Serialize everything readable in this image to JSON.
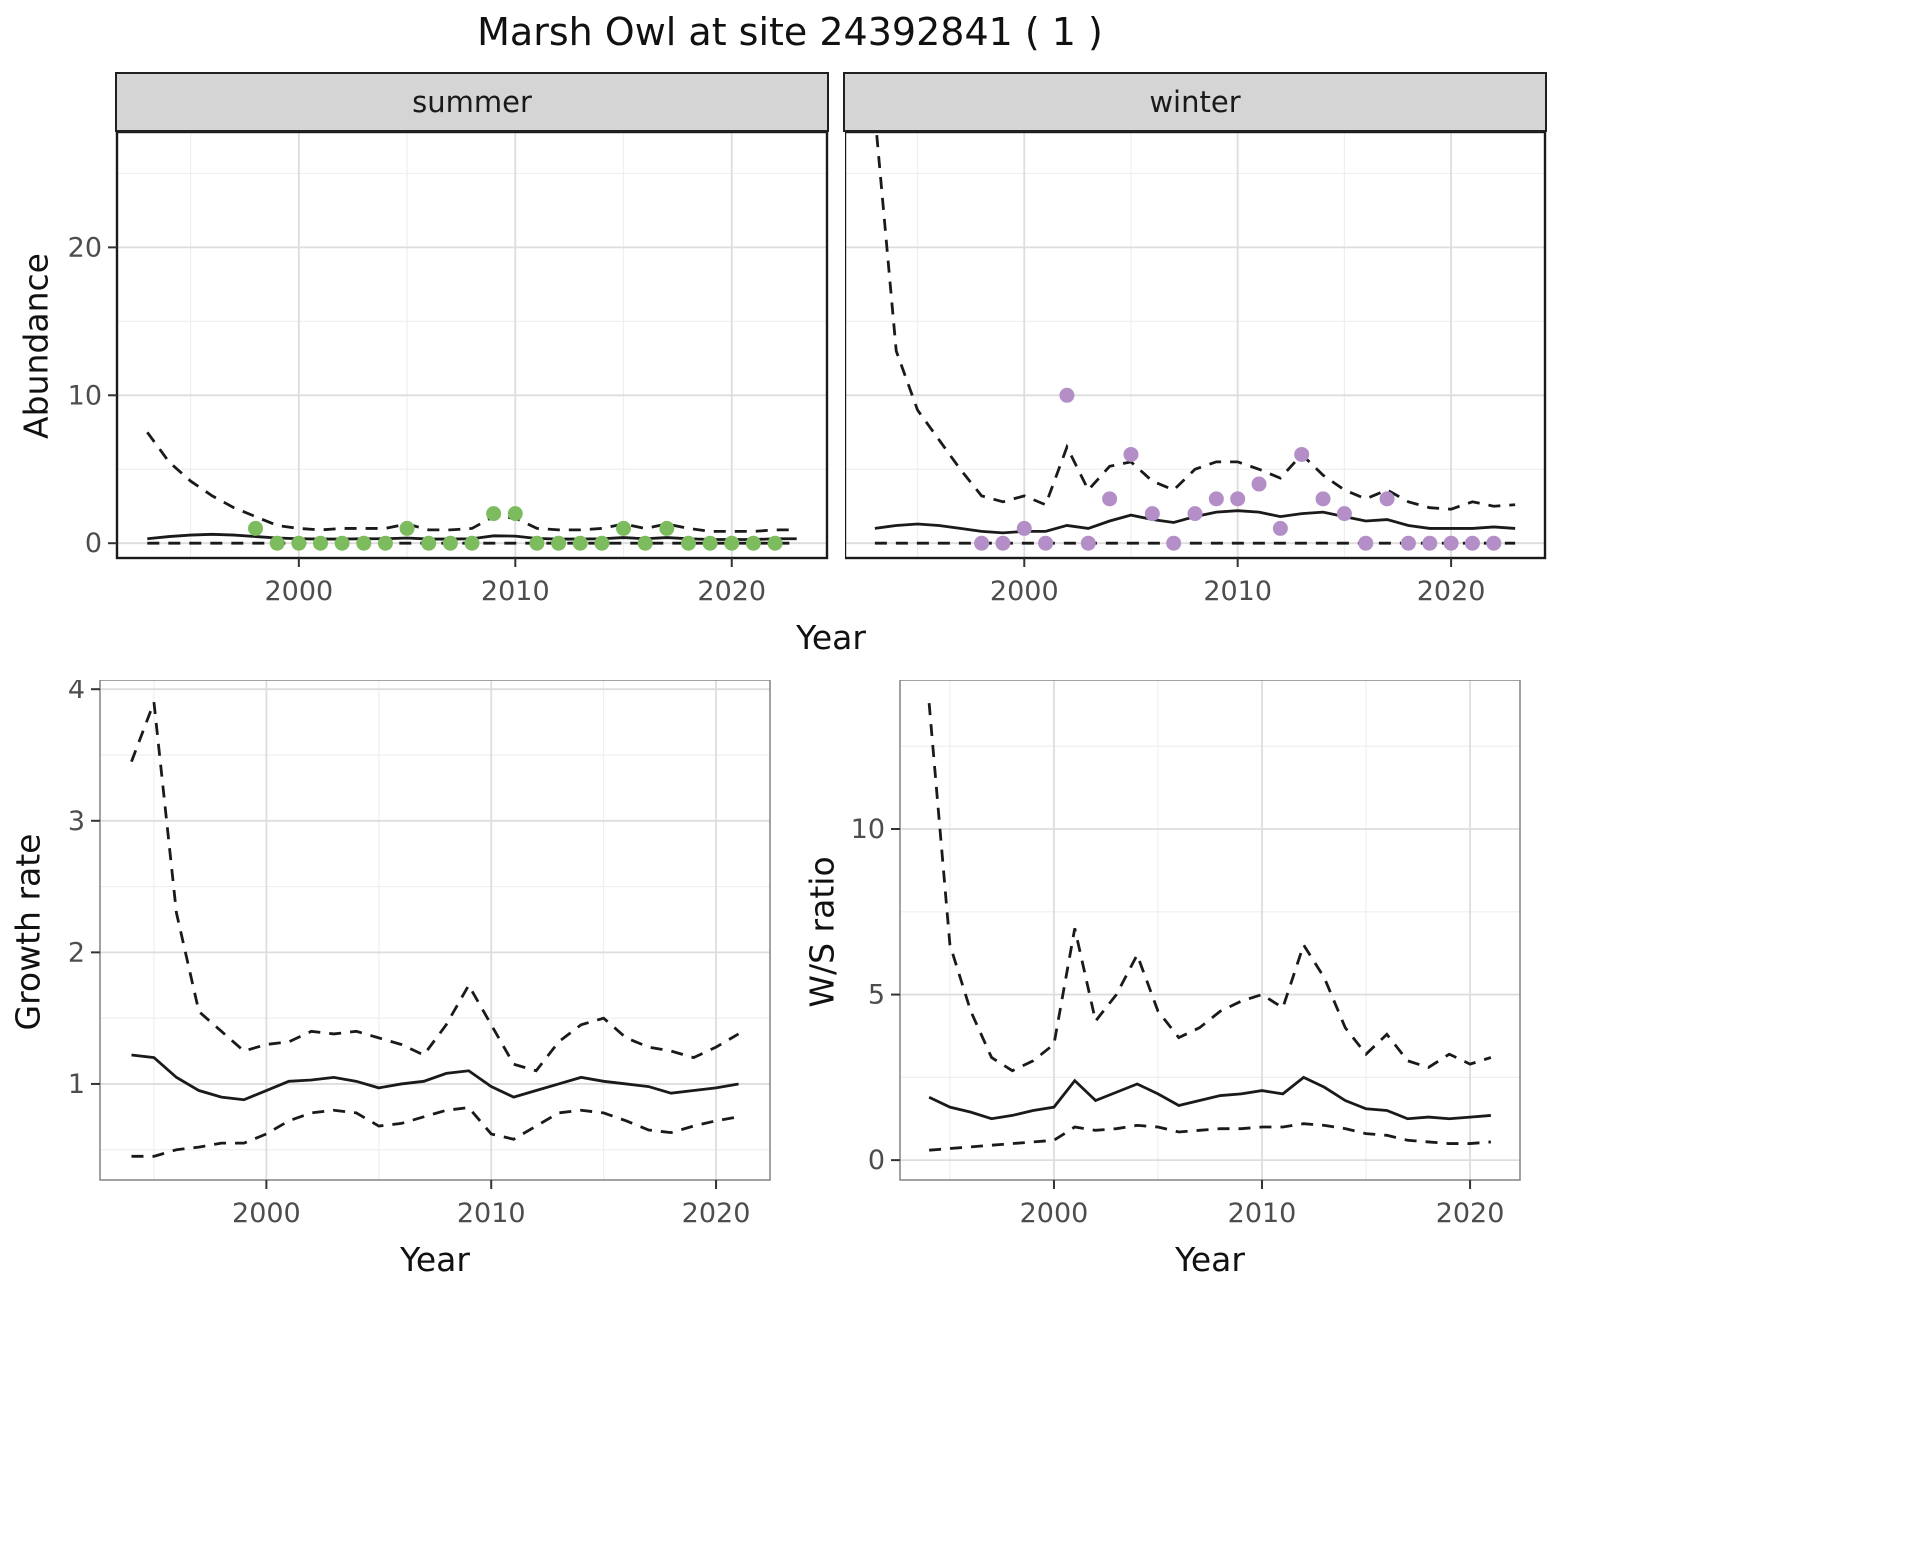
{
  "title": "Marsh Owl at site 24392841 ( 1 )",
  "facets": [
    {
      "id": "summer",
      "label": "summer"
    },
    {
      "id": "winter",
      "label": "winter"
    }
  ],
  "axes": {
    "abundance": "Abundance",
    "year_top": "Year",
    "growth_rate": "Growth rate",
    "year_growth": "Year",
    "ws_ratio": "W/S ratio",
    "year_ws": "Year"
  },
  "colors": {
    "summer_points": "#7CBB5E",
    "winter_points": "#B48EC7",
    "line": "#1a1a1a",
    "strip_background": "#d5d5d5",
    "grid_major": "#dddddd",
    "grid_minor": "#efefef"
  },
  "chart_data": [
    {
      "id": "abundance-summer",
      "type": "line",
      "facet": "summer",
      "xlabel": "Year",
      "ylabel": "Abundance",
      "xlim": [
        1991.6,
        2024.4
      ],
      "ylim": [
        -1.0,
        27.8
      ],
      "xticks": [
        2000,
        2010,
        2020
      ],
      "yticks": [
        0,
        10,
        20
      ],
      "x": [
        1993,
        1994,
        1995,
        1996,
        1997,
        1998,
        1999,
        2000,
        2001,
        2002,
        2003,
        2004,
        2005,
        2006,
        2007,
        2008,
        2009,
        2010,
        2011,
        2012,
        2013,
        2014,
        2015,
        2016,
        2017,
        2018,
        2019,
        2020,
        2021,
        2022,
        2023
      ],
      "series": [
        {
          "name": "upper_95ci",
          "style": "dashed",
          "color": "#1a1a1a",
          "y": [
            7.5,
            5.5,
            4.2,
            3.2,
            2.4,
            1.8,
            1.2,
            1.0,
            0.9,
            1.0,
            1.0,
            1.0,
            1.3,
            0.9,
            0.9,
            1.0,
            1.8,
            1.7,
            1.0,
            0.9,
            0.9,
            1.0,
            1.3,
            1.0,
            1.3,
            1.0,
            0.8,
            0.8,
            0.8,
            0.9,
            0.9
          ]
        },
        {
          "name": "fitted",
          "style": "solid",
          "color": "#1a1a1a",
          "y": [
            0.3,
            0.45,
            0.55,
            0.6,
            0.55,
            0.45,
            0.35,
            0.3,
            0.28,
            0.28,
            0.3,
            0.3,
            0.35,
            0.28,
            0.28,
            0.3,
            0.5,
            0.48,
            0.32,
            0.28,
            0.28,
            0.3,
            0.38,
            0.3,
            0.38,
            0.3,
            0.25,
            0.25,
            0.25,
            0.3,
            0.3
          ]
        },
        {
          "name": "lower_95ci",
          "style": "dashed",
          "color": "#1a1a1a",
          "y": [
            0,
            0,
            0,
            0,
            0,
            0,
            0,
            0,
            0,
            0,
            0,
            0,
            0,
            0,
            0,
            0,
            0,
            0,
            0,
            0,
            0,
            0,
            0,
            0,
            0,
            0,
            0,
            0,
            0,
            0,
            0
          ]
        }
      ],
      "points": {
        "name": "observed_counts",
        "color": "#7CBB5E",
        "x": [
          1998,
          1999,
          2000,
          2001,
          2002,
          2003,
          2004,
          2005,
          2006,
          2007,
          2008,
          2009,
          2010,
          2011,
          2012,
          2013,
          2014,
          2015,
          2016,
          2017,
          2018,
          2019,
          2020,
          2021,
          2022
        ],
        "y": [
          1,
          0,
          0,
          0,
          0,
          0,
          0,
          1,
          0,
          0,
          0,
          2,
          2,
          0,
          0,
          0,
          0,
          1,
          0,
          1,
          0,
          0,
          0,
          0,
          0
        ]
      }
    },
    {
      "id": "abundance-winter",
      "type": "line",
      "facet": "winter",
      "xlabel": "Year",
      "ylabel": "Abundance",
      "xlim": [
        1991.6,
        2024.4
      ],
      "ylim": [
        -1.0,
        27.8
      ],
      "xticks": [
        2000,
        2010,
        2020
      ],
      "yticks": [
        0,
        10,
        20
      ],
      "x": [
        1993,
        1994,
        1995,
        1996,
        1997,
        1998,
        1999,
        2000,
        2001,
        2002,
        2003,
        2004,
        2005,
        2006,
        2007,
        2008,
        2009,
        2010,
        2011,
        2012,
        2013,
        2014,
        2015,
        2016,
        2017,
        2018,
        2019,
        2020,
        2021,
        2022,
        2023
      ],
      "series": [
        {
          "name": "upper_95ci",
          "style": "dashed",
          "color": "#1a1a1a",
          "y": [
            29,
            13,
            9,
            7,
            5,
            3.2,
            2.8,
            3.2,
            2.6,
            6.5,
            3.6,
            5.2,
            5.5,
            4.2,
            3.6,
            5.0,
            5.5,
            5.5,
            5.0,
            4.4,
            6.0,
            4.6,
            3.6,
            3.0,
            3.6,
            2.8,
            2.4,
            2.3,
            2.8,
            2.5,
            2.6
          ]
        },
        {
          "name": "fitted",
          "style": "solid",
          "color": "#1a1a1a",
          "y": [
            1.0,
            1.2,
            1.3,
            1.2,
            1.0,
            0.8,
            0.7,
            0.8,
            0.8,
            1.2,
            1.0,
            1.5,
            1.9,
            1.6,
            1.4,
            1.8,
            2.1,
            2.2,
            2.1,
            1.8,
            2.0,
            2.1,
            1.8,
            1.5,
            1.6,
            1.2,
            1.0,
            1.0,
            1.0,
            1.1,
            1.0
          ]
        },
        {
          "name": "lower_95ci",
          "style": "dashed",
          "color": "#1a1a1a",
          "y": [
            0,
            0,
            0,
            0,
            0,
            0,
            0,
            0,
            0,
            0,
            0,
            0,
            0,
            0,
            0,
            0,
            0,
            0,
            0,
            0,
            0,
            0,
            0,
            0,
            0,
            0,
            0,
            0,
            0,
            0,
            0
          ]
        }
      ],
      "points": {
        "name": "observed_counts",
        "color": "#B48EC7",
        "x": [
          1998,
          1999,
          2000,
          2001,
          2002,
          2003,
          2004,
          2005,
          2006,
          2007,
          2008,
          2009,
          2010,
          2011,
          2012,
          2013,
          2014,
          2015,
          2016,
          2017,
          2018,
          2019,
          2020,
          2021,
          2022
        ],
        "y": [
          0,
          0,
          1,
          0,
          10,
          0,
          3,
          6,
          2,
          0,
          2,
          3,
          3,
          4,
          1,
          6,
          3,
          2,
          0,
          3,
          0,
          0,
          0,
          0,
          0
        ]
      }
    },
    {
      "id": "growth-rate",
      "type": "line",
      "xlabel": "Year",
      "ylabel": "Growth rate",
      "xlim": [
        1992.6,
        2022.4
      ],
      "ylim": [
        0.27,
        4.07
      ],
      "xticks": [
        2000,
        2010,
        2020
      ],
      "yticks": [
        1,
        2,
        3,
        4
      ],
      "x": [
        1994,
        1995,
        1996,
        1997,
        1998,
        1999,
        2000,
        2001,
        2002,
        2003,
        2004,
        2005,
        2006,
        2007,
        2008,
        2009,
        2010,
        2011,
        2012,
        2013,
        2014,
        2015,
        2016,
        2017,
        2018,
        2019,
        2020,
        2021
      ],
      "series": [
        {
          "name": "upper_95ci",
          "style": "dashed",
          "color": "#1a1a1a",
          "y": [
            3.45,
            3.9,
            2.3,
            1.55,
            1.4,
            1.25,
            1.3,
            1.32,
            1.4,
            1.38,
            1.4,
            1.35,
            1.3,
            1.22,
            1.45,
            1.75,
            1.45,
            1.15,
            1.1,
            1.32,
            1.45,
            1.5,
            1.35,
            1.28,
            1.25,
            1.2,
            1.28,
            1.38
          ]
        },
        {
          "name": "fitted",
          "style": "solid",
          "color": "#1a1a1a",
          "y": [
            1.22,
            1.2,
            1.05,
            0.95,
            0.9,
            0.88,
            0.95,
            1.02,
            1.03,
            1.05,
            1.02,
            0.97,
            1.0,
            1.02,
            1.08,
            1.1,
            0.98,
            0.9,
            0.95,
            1.0,
            1.05,
            1.02,
            1.0,
            0.98,
            0.93,
            0.95,
            0.97,
            1.0
          ]
        },
        {
          "name": "lower_95ci",
          "style": "dashed",
          "color": "#1a1a1a",
          "y": [
            0.45,
            0.45,
            0.5,
            0.52,
            0.55,
            0.55,
            0.62,
            0.72,
            0.78,
            0.8,
            0.78,
            0.68,
            0.7,
            0.75,
            0.8,
            0.82,
            0.62,
            0.58,
            0.68,
            0.78,
            0.8,
            0.78,
            0.72,
            0.65,
            0.63,
            0.68,
            0.72,
            0.75
          ]
        }
      ]
    },
    {
      "id": "ws-ratio",
      "type": "line",
      "xlabel": "Year",
      "ylabel": "W/S ratio",
      "xlim": [
        1992.6,
        2022.4
      ],
      "ylim": [
        -0.6,
        14.5
      ],
      "xticks": [
        2000,
        2010,
        2020
      ],
      "yticks": [
        0,
        5,
        10
      ],
      "x": [
        1994,
        1995,
        1996,
        1997,
        1998,
        1999,
        2000,
        2001,
        2002,
        2003,
        2004,
        2005,
        2006,
        2007,
        2008,
        2009,
        2010,
        2011,
        2012,
        2013,
        2014,
        2015,
        2016,
        2017,
        2018,
        2019,
        2020,
        2021
      ],
      "series": [
        {
          "name": "upper_95ci",
          "style": "dashed",
          "color": "#1a1a1a",
          "y": [
            13.8,
            6.5,
            4.5,
            3.1,
            2.7,
            3.0,
            3.5,
            7.0,
            4.2,
            5.0,
            6.2,
            4.5,
            3.7,
            4.0,
            4.5,
            4.8,
            5.0,
            4.6,
            6.5,
            5.5,
            4.0,
            3.2,
            3.8,
            3.0,
            2.8,
            3.2,
            2.9,
            3.1
          ]
        },
        {
          "name": "fitted",
          "style": "solid",
          "color": "#1a1a1a",
          "y": [
            1.9,
            1.6,
            1.45,
            1.25,
            1.35,
            1.5,
            1.6,
            2.4,
            1.8,
            2.05,
            2.3,
            2.0,
            1.65,
            1.8,
            1.95,
            2.0,
            2.1,
            2.0,
            2.5,
            2.2,
            1.8,
            1.55,
            1.5,
            1.25,
            1.3,
            1.25,
            1.3,
            1.35
          ]
        },
        {
          "name": "lower_95ci",
          "style": "dashed",
          "color": "#1a1a1a",
          "y": [
            0.3,
            0.35,
            0.4,
            0.45,
            0.5,
            0.55,
            0.6,
            1.0,
            0.9,
            0.95,
            1.05,
            1.0,
            0.85,
            0.9,
            0.95,
            0.95,
            1.0,
            1.0,
            1.1,
            1.05,
            0.95,
            0.8,
            0.75,
            0.6,
            0.55,
            0.5,
            0.5,
            0.55
          ]
        }
      ]
    }
  ]
}
